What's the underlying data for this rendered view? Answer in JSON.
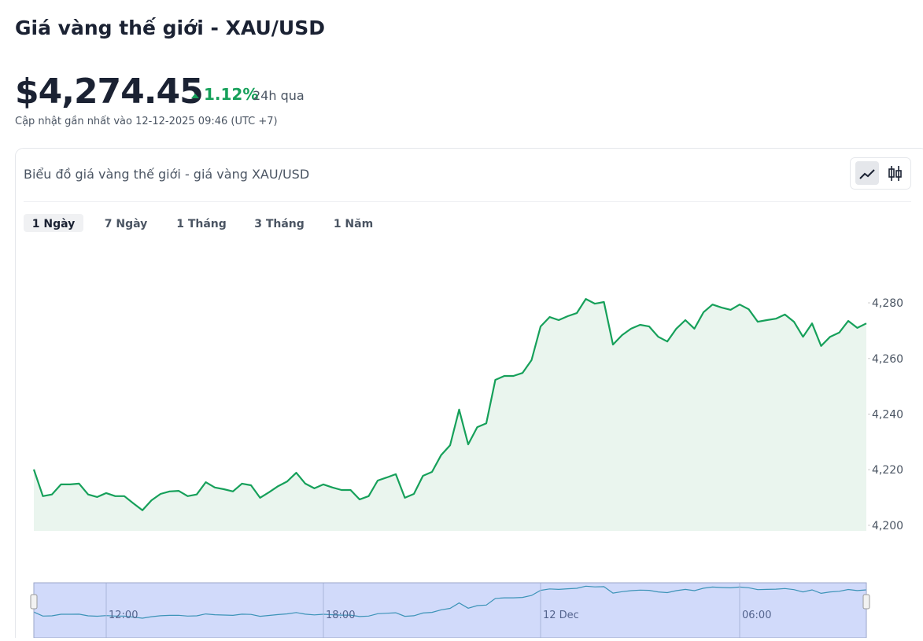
{
  "header": {
    "title": "Giá vàng thế giới - XAU/USD",
    "price": "$4,274.45",
    "change": "1.12%",
    "change_period": "24h qua",
    "updated": "Cập nhật gần nhất vào 12-12-2025 09:46 (UTC +7)"
  },
  "card": {
    "title": "Biểu đồ giá vàng thế giới - giá vàng XAU/USD",
    "tabs": [
      "1 Ngày",
      "7 Ngày",
      "1 Tháng",
      "3 Tháng",
      "1 Năm"
    ]
  },
  "chart_data": {
    "type": "area",
    "color": "#16a05a",
    "values": [
      4220.1,
      4210.5,
      4211.1,
      4214.7,
      4214.7,
      4215,
      4211.1,
      4210.2,
      4211.6,
      4210.5,
      4210.5,
      4207.9,
      4205.4,
      4209.0,
      4211.3,
      4212.2,
      4212.4,
      4210.5,
      4211.1,
      4215.5,
      4213.6,
      4213.0,
      4212.2,
      4215.0,
      4214.4,
      4209.9,
      4211.9,
      4214.1,
      4215.8,
      4218.9,
      4215.0,
      4213.3,
      4214.7,
      4213.6,
      4212.7,
      4212.7,
      4209.3,
      4210.5,
      4216.1,
      4217.2,
      4218.4,
      4209.9,
      4211.3,
      4217.8,
      4219.2,
      4225.2,
      4228.8,
      4241.6,
      4229.1,
      4235.3,
      4236.7,
      4252.3,
      4253.7,
      4253.7,
      4254.8,
      4259.4,
      4271.5,
      4274.9,
      4273.8,
      4275.2,
      4276.3,
      4281.4,
      4279.7,
      4280.3,
      4265.0,
      4268.4,
      4270.7,
      4272.1,
      4271.5,
      4267.8,
      4266.1,
      4270.7,
      4273.8,
      4270.7,
      4276.6,
      4279.4,
      4278.3,
      4277.5,
      4279.4,
      4277.7,
      4273.2,
      4273.8,
      4274.3,
      4275.8,
      4273.2,
      4267.8,
      4272.6,
      4264.5,
      4267.8,
      4269.3,
      4273.5,
      4271.0,
      4272.6
    ],
    "ylim": [
      4198,
      4295
    ],
    "yticks": [
      {
        "value": 4200,
        "label": "4,200"
      },
      {
        "value": 4220,
        "label": "4,220"
      },
      {
        "value": 4240,
        "label": "4,240"
      },
      {
        "value": 4260,
        "label": "4,260"
      },
      {
        "value": 4280,
        "label": "4,280"
      }
    ],
    "xlim": [
      0,
      92
    ],
    "xticks": [
      {
        "value": 8,
        "label": "12:00"
      },
      {
        "value": 32,
        "label": "18:00"
      },
      {
        "value": 56,
        "label": "12 Dec"
      },
      {
        "value": 78,
        "label": "06:00"
      }
    ]
  }
}
